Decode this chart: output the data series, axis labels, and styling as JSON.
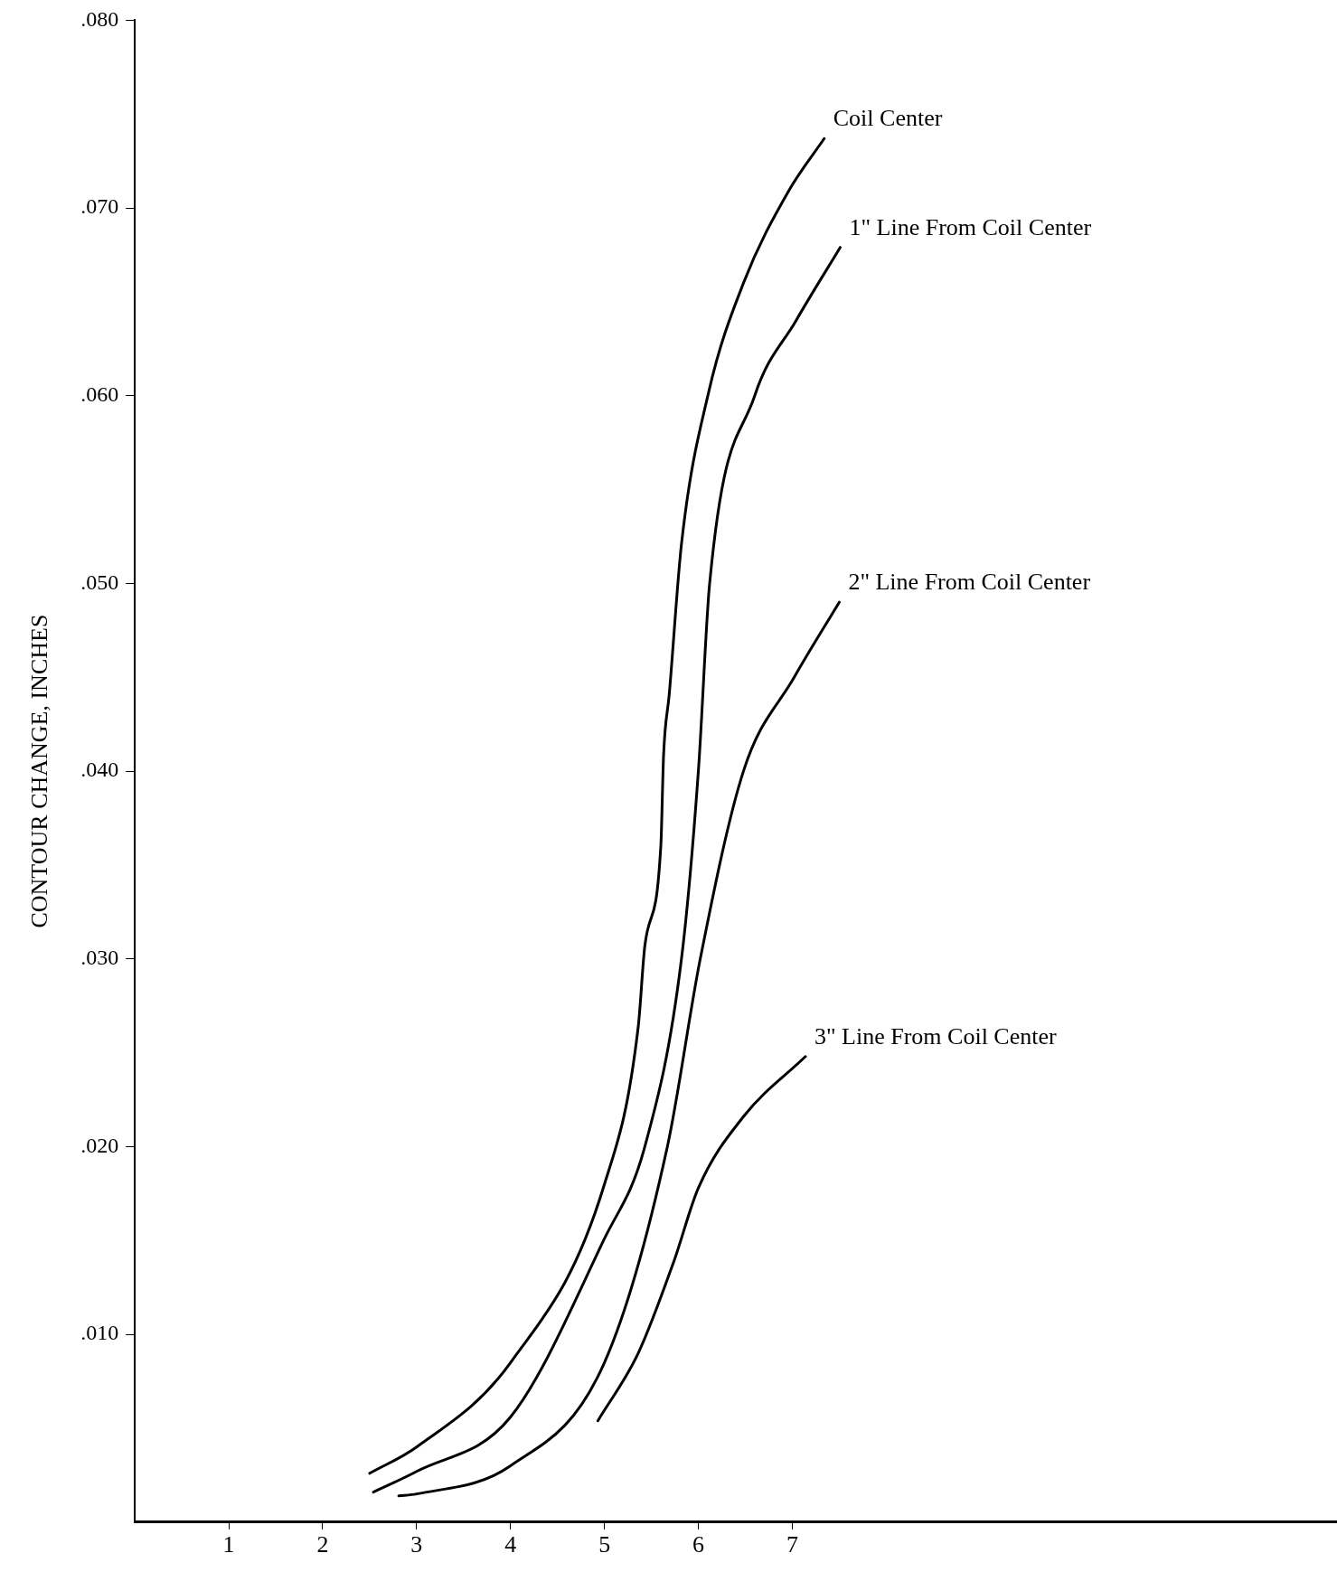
{
  "chart_data": {
    "type": "line",
    "ylabel": "CONTOUR CHANGE, INCHES",
    "xlim": [
      0,
      12.8
    ],
    "xticks": [
      1,
      2,
      3,
      4,
      5,
      6,
      7
    ],
    "ylim": [
      0,
      0.08
    ],
    "yticks": [
      {
        "value": 0.01,
        "label": ".010"
      },
      {
        "value": 0.02,
        "label": ".020"
      },
      {
        "value": 0.03,
        "label": ".030"
      },
      {
        "value": 0.04,
        "label": ".040"
      },
      {
        "value": 0.05,
        "label": ".050"
      },
      {
        "value": 0.06,
        "label": ".060"
      },
      {
        "value": 0.07,
        "label": ".070"
      },
      {
        "value": 0.08,
        "label": ".080"
      }
    ],
    "grid": false,
    "legend": false,
    "marker": "none",
    "line_style": "solid",
    "series": [
      {
        "name": "Coil Center",
        "color": "#000000",
        "x": [
          2.5,
          3,
          4,
          5,
          5.36,
          5.43,
          5.6,
          5.63,
          5.69,
          5.82,
          6.11,
          6.48,
          6.96,
          7.34
        ],
        "values": [
          0.0026,
          0.004,
          0.0085,
          0.018,
          0.0264,
          0.0307,
          0.036,
          0.0409,
          0.0441,
          0.0521,
          0.0602,
          0.066,
          0.0709,
          0.0737
        ]
      },
      {
        "name": "1\" Line From Coil Center",
        "color": "#000000",
        "x": [
          2.54,
          3,
          4,
          5,
          5.43,
          5.82,
          6,
          6.12,
          6.6,
          7.04,
          7.51
        ],
        "values": [
          0.0016,
          0.0027,
          0.0056,
          0.0151,
          0.02,
          0.03,
          0.04,
          0.05,
          0.06,
          0.064,
          0.0679
        ]
      },
      {
        "name": "2\" Line From Coil Center",
        "color": "#000000",
        "x": [
          2.81,
          3,
          4,
          5,
          5.67,
          6.02,
          6.48,
          7.02,
          7.5
        ],
        "values": [
          0.0014,
          0.0015,
          0.003,
          0.0085,
          0.02,
          0.03,
          0.04,
          0.045,
          0.049
        ]
      },
      {
        "name": "3\" Line From Coil Center",
        "color": "#000000",
        "x": [
          4.93,
          5.36,
          5.74,
          6,
          6.48,
          7.14
        ],
        "values": [
          0.0054,
          0.009,
          0.0139,
          0.0178,
          0.0216,
          0.0248
        ]
      }
    ]
  }
}
